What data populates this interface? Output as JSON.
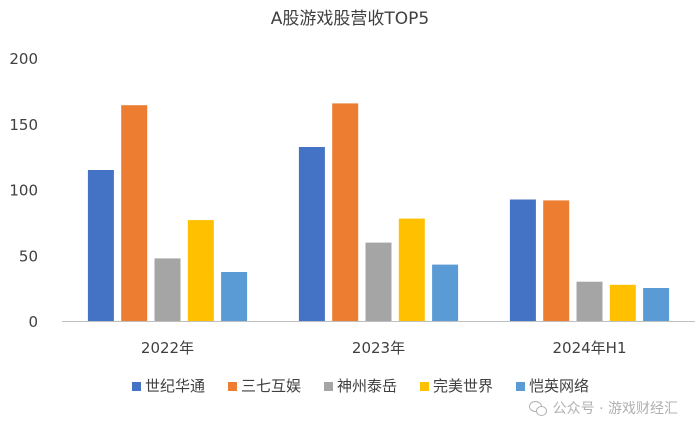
{
  "chart_data": {
    "type": "bar",
    "title": "A股游戏股营收TOP5",
    "categories": [
      "2022年",
      "2023年",
      "2024年H1"
    ],
    "series": [
      {
        "name": "世纪华通",
        "color": "#4472C4",
        "values": [
          114.8,
          132.3,
          92.4
        ]
      },
      {
        "name": "三七互娱",
        "color": "#ED7D31",
        "values": [
          164.1,
          165.5,
          91.7
        ]
      },
      {
        "name": "神州泰岳",
        "color": "#A5A5A5",
        "values": [
          47.6,
          59.6,
          29.9
        ]
      },
      {
        "name": "完美世界",
        "color": "#FFC000",
        "values": [
          76.7,
          77.9,
          27.5
        ]
      },
      {
        "name": "恺英网络",
        "color": "#5B9BD5",
        "values": [
          37.3,
          42.9,
          25.1
        ]
      }
    ],
    "ylim": [
      0,
      200
    ],
    "yticks": [
      0,
      50,
      100,
      150,
      200
    ],
    "legend_position": "bottom",
    "grid": false
  },
  "watermark": {
    "icon": "wechat-icon",
    "text": "公众号 · 游戏财经汇"
  }
}
